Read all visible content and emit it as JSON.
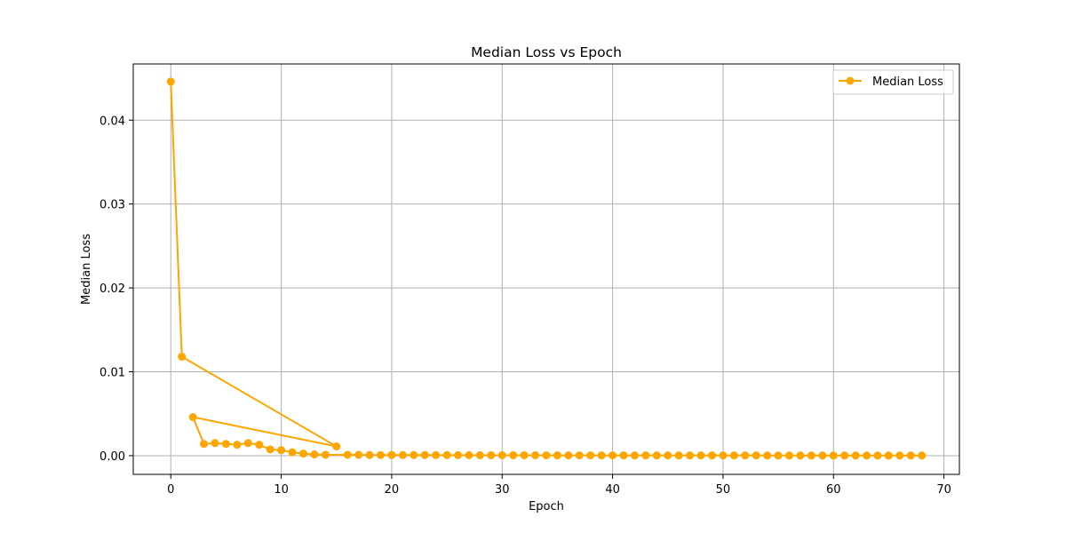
{
  "chart_data": {
    "type": "line",
    "title": "Median Loss vs Epoch",
    "xlabel": "Epoch",
    "ylabel": "Median Loss",
    "xlim": [
      -3.4,
      71.4
    ],
    "ylim": [
      -0.00223,
      0.0467
    ],
    "xticks": [
      0,
      10,
      20,
      30,
      40,
      50,
      60,
      70
    ],
    "xtick_labels": [
      "0",
      "10",
      "20",
      "30",
      "40",
      "50",
      "60",
      "70"
    ],
    "yticks": [
      0.0,
      0.01,
      0.02,
      0.03,
      0.04
    ],
    "ytick_labels": [
      "0.00",
      "0.01",
      "0.02",
      "0.03",
      "0.04"
    ],
    "grid": true,
    "legend_position": "top-right",
    "color": "#FFA500",
    "series": [
      {
        "name": "Median Loss",
        "marker": "circle",
        "x": [
          0,
          1,
          15,
          2,
          3,
          4,
          5,
          6,
          7,
          8,
          9,
          10,
          11,
          12,
          13,
          14,
          16,
          17,
          18,
          19,
          20,
          21,
          22,
          23,
          24,
          25,
          26,
          27,
          28,
          29,
          30,
          31,
          32,
          33,
          34,
          35,
          36,
          37,
          38,
          39,
          40,
          41,
          42,
          43,
          44,
          45,
          46,
          47,
          48,
          49,
          50,
          51,
          52,
          53,
          54,
          55,
          56,
          57,
          58,
          59,
          60,
          61,
          62,
          63,
          64,
          65,
          66,
          67,
          68
        ],
        "y": [
          0.0446,
          0.0118,
          0.0011,
          0.0046,
          0.0014,
          0.0015,
          0.0014,
          0.0013,
          0.0015,
          0.0013,
          0.00075,
          0.00065,
          0.0004,
          0.00025,
          0.00015,
          0.0001,
          0.0001,
          0.0001,
          8e-05,
          8e-05,
          8e-05,
          7e-05,
          7e-05,
          7e-05,
          6e-05,
          6e-05,
          6e-05,
          6e-05,
          5e-05,
          5e-05,
          5e-05,
          5e-05,
          5e-05,
          5e-05,
          4e-05,
          4e-05,
          4e-05,
          4e-05,
          4e-05,
          4e-05,
          4e-05,
          4e-05,
          3e-05,
          3e-05,
          3e-05,
          3e-05,
          3e-05,
          3e-05,
          3e-05,
          3e-05,
          3e-05,
          3e-05,
          3e-05,
          3e-05,
          2e-05,
          2e-05,
          2e-05,
          2e-05,
          2e-05,
          2e-05,
          2e-05,
          2e-05,
          2e-05,
          2e-05,
          2e-05,
          2e-05,
          2e-05,
          2e-05,
          2e-05
        ]
      }
    ]
  }
}
